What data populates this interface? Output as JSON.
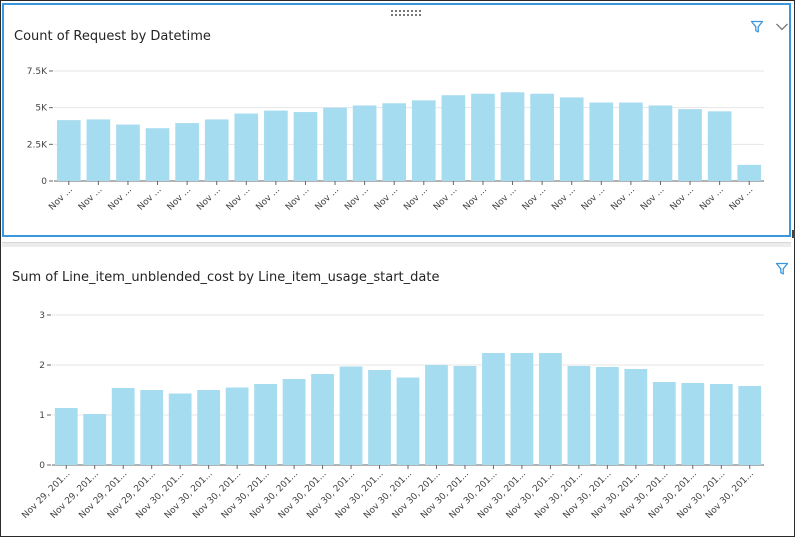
{
  "charts_meta": {
    "accent": "#3a96dd",
    "bar_color": "#a6dcef",
    "icons": [
      "filter-icon",
      "chevron-down-icon",
      "drag-handle-icon"
    ]
  },
  "chart_data": [
    {
      "type": "bar",
      "title": "Count of Request by Datetime",
      "xlabel": "",
      "ylabel": "",
      "ylim": [
        0,
        7500
      ],
      "yticks": [
        0,
        2500,
        5000,
        7500
      ],
      "ytick_labels": [
        "0",
        "2.5K",
        "5K",
        "7.5K"
      ],
      "grid": true,
      "categories": [
        "Nov ...",
        "Nov ...",
        "Nov ...",
        "Nov ...",
        "Nov ...",
        "Nov ...",
        "Nov ...",
        "Nov ...",
        "Nov ...",
        "Nov ...",
        "Nov ...",
        "Nov ...",
        "Nov ...",
        "Nov ...",
        "Nov ...",
        "Nov ...",
        "Nov ...",
        "Nov ...",
        "Nov ...",
        "Nov ...",
        "Nov ...",
        "Nov ...",
        "Nov ...",
        "Nov ..."
      ],
      "values": [
        4150,
        4200,
        3850,
        3600,
        3950,
        4200,
        4600,
        4800,
        4700,
        5000,
        5150,
        5300,
        5500,
        5850,
        5950,
        6050,
        5950,
        5700,
        5350,
        5350,
        5150,
        4900,
        4750,
        1100
      ]
    },
    {
      "type": "bar",
      "title": "Sum of Line_item_unblended_cost by Line_item_usage_start_date",
      "xlabel": "",
      "ylabel": "",
      "ylim": [
        0,
        3
      ],
      "yticks": [
        0,
        1,
        2,
        3
      ],
      "ytick_labels": [
        "0",
        "1",
        "2",
        "3"
      ],
      "grid": true,
      "categories": [
        "Nov 29, 201...",
        "Nov 29, 201...",
        "Nov 29, 201...",
        "Nov 29, 201...",
        "Nov 30, 201...",
        "Nov 30, 201...",
        "Nov 30, 201...",
        "Nov 30, 201...",
        "Nov 30, 201...",
        "Nov 30, 201...",
        "Nov 30, 201...",
        "Nov 30, 201...",
        "Nov 30, 201...",
        "Nov 30, 201...",
        "Nov 30, 201...",
        "Nov 30, 201...",
        "Nov 30, 201...",
        "Nov 30, 201...",
        "Nov 30, 201...",
        "Nov 30, 201...",
        "Nov 30, 201...",
        "Nov 30, 201...",
        "Nov 30, 201...",
        "Nov 30, 201...",
        "Nov 30, 201..."
      ],
      "values": [
        1.14,
        1.02,
        1.54,
        1.5,
        1.43,
        1.5,
        1.55,
        1.62,
        1.72,
        1.82,
        1.97,
        1.9,
        1.75,
        2.0,
        1.98,
        2.24,
        2.24,
        2.24,
        1.98,
        1.96,
        1.92,
        1.66,
        1.64,
        1.62,
        1.58
      ]
    }
  ]
}
